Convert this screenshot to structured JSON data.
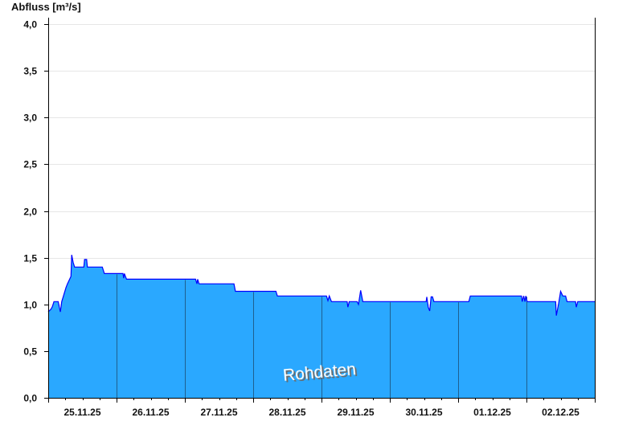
{
  "chart_data": {
    "type": "area",
    "title": "",
    "ylabel": "Abfluss [m³/s]",
    "xlabel": "",
    "ylim": [
      0,
      4.0
    ],
    "xlim": [
      "2025-11-25T00:00",
      "2025-12-03T00:00"
    ],
    "y_ticks": [
      "0,0",
      "0,5",
      "1,0",
      "1,5",
      "2,0",
      "2,5",
      "3,0",
      "3,5",
      "4,0"
    ],
    "y_tick_values": [
      0,
      0.5,
      1.0,
      1.5,
      2.0,
      2.5,
      3.0,
      3.5,
      4.0
    ],
    "x_tick_labels": [
      "25.11.25",
      "26.11.25",
      "27.11.25",
      "28.11.25",
      "29.11.25",
      "30.11.25",
      "01.12.25",
      "02.12.25"
    ],
    "grid": true,
    "watermark": "Rohdaten",
    "colors": {
      "fill": "#2aa8ff",
      "line": "#0000ff",
      "grid": "#e6e6e6",
      "day_separator": "#1f5f8f"
    },
    "points": [
      [
        "2025-11-25T00:00",
        0.92
      ],
      [
        "2025-11-25T01:00",
        0.95
      ],
      [
        "2025-11-25T01:30",
        0.98
      ],
      [
        "2025-11-25T02:00",
        1.03
      ],
      [
        "2025-11-25T03:30",
        1.03
      ],
      [
        "2025-11-25T04:15",
        0.92
      ],
      [
        "2025-11-25T04:45",
        1.03
      ],
      [
        "2025-11-25T05:15",
        1.08
      ],
      [
        "2025-11-25T06:15",
        1.18
      ],
      [
        "2025-11-25T06:45",
        1.22
      ],
      [
        "2025-11-25T08:00",
        1.3
      ],
      [
        "2025-11-25T08:15",
        1.53
      ],
      [
        "2025-11-25T08:45",
        1.45
      ],
      [
        "2025-11-25T09:15",
        1.4
      ],
      [
        "2025-11-25T12:30",
        1.4
      ],
      [
        "2025-11-25T12:45",
        1.48
      ],
      [
        "2025-11-25T13:30",
        1.48
      ],
      [
        "2025-11-25T13:45",
        1.4
      ],
      [
        "2025-11-25T19:00",
        1.4
      ],
      [
        "2025-11-25T19:30",
        1.35
      ],
      [
        "2025-11-25T19:45",
        1.33
      ],
      [
        "2025-11-26T02:15",
        1.33
      ],
      [
        "2025-11-26T02:30",
        1.28
      ],
      [
        "2025-11-26T02:45",
        1.33
      ],
      [
        "2025-11-26T03:30",
        1.27
      ],
      [
        "2025-11-27T03:45",
        1.27
      ],
      [
        "2025-11-27T04:15",
        1.22
      ],
      [
        "2025-11-27T04:30",
        1.27
      ],
      [
        "2025-11-27T05:00",
        1.22
      ],
      [
        "2025-11-27T17:15",
        1.22
      ],
      [
        "2025-11-27T17:45",
        1.14
      ],
      [
        "2025-11-28T08:00",
        1.14
      ],
      [
        "2025-11-28T08:30",
        1.09
      ],
      [
        "2025-11-29T01:45",
        1.09
      ],
      [
        "2025-11-29T02:15",
        1.04
      ],
      [
        "2025-11-29T02:45",
        1.09
      ],
      [
        "2025-11-29T03:30",
        1.03
      ],
      [
        "2025-11-29T09:00",
        1.03
      ],
      [
        "2025-11-29T09:15",
        0.97
      ],
      [
        "2025-11-29T09:45",
        1.03
      ],
      [
        "2025-11-29T12:30",
        1.03
      ],
      [
        "2025-11-29T13:00",
        1.0
      ],
      [
        "2025-11-29T13:45",
        1.15
      ],
      [
        "2025-11-29T14:30",
        1.03
      ],
      [
        "2025-11-30T12:45",
        1.03
      ],
      [
        "2025-11-30T13:00",
        1.08
      ],
      [
        "2025-11-30T13:30",
        0.97
      ],
      [
        "2025-11-30T14:00",
        0.93
      ],
      [
        "2025-11-30T14:30",
        1.08
      ],
      [
        "2025-11-30T15:00",
        1.08
      ],
      [
        "2025-11-30T15:30",
        1.03
      ],
      [
        "2025-12-01T03:45",
        1.03
      ],
      [
        "2025-12-01T04:15",
        1.09
      ],
      [
        "2025-12-01T22:15",
        1.09
      ],
      [
        "2025-12-01T22:30",
        1.03
      ],
      [
        "2025-12-01T23:00",
        1.09
      ],
      [
        "2025-12-01T23:30",
        1.03
      ],
      [
        "2025-12-01T23:45",
        1.09
      ],
      [
        "2025-12-02T00:15",
        1.03
      ],
      [
        "2025-12-02T10:15",
        1.03
      ],
      [
        "2025-12-02T10:30",
        0.88
      ],
      [
        "2025-12-02T11:15",
        1.0
      ],
      [
        "2025-12-02T12:00",
        1.14
      ],
      [
        "2025-12-02T12:45",
        1.09
      ],
      [
        "2025-12-02T13:45",
        1.09
      ],
      [
        "2025-12-02T14:15",
        1.03
      ],
      [
        "2025-12-02T17:15",
        1.03
      ],
      [
        "2025-12-02T17:30",
        0.97
      ],
      [
        "2025-12-02T18:00",
        1.03
      ],
      [
        "2025-12-03T00:00",
        1.03
      ]
    ]
  }
}
